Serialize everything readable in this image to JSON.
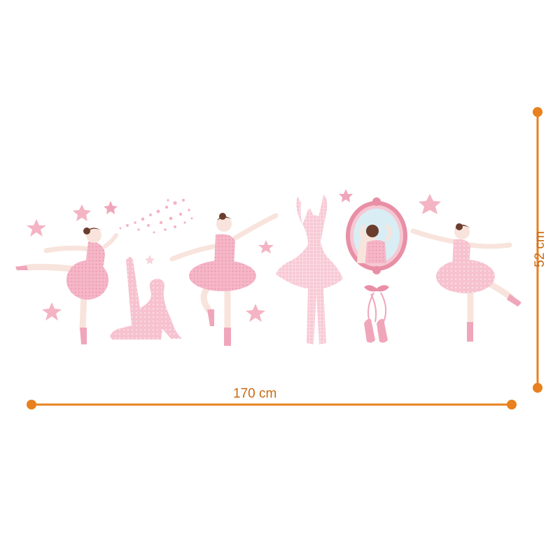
{
  "product": {
    "description_hidden": ""
  },
  "dimensions": {
    "width_label": "170 cm",
    "height_label": "52 cm"
  },
  "colors": {
    "dimension_line": "#E8801E",
    "dimension_text": "#C86A14",
    "pink_light": "#F9D3DC",
    "pink_mid": "#F4B4C4",
    "pink_dark": "#E88FA6",
    "skin": "#F8E4DC",
    "hair": "#6B3D2E",
    "mirror_frame": "#E06C9A"
  },
  "decals": [
    {
      "name": "ballerina-arabesque"
    },
    {
      "name": "dancer-stretching-silhouette"
    },
    {
      "name": "ballerina-tutu-center"
    },
    {
      "name": "dancer-arms-up-silhouette"
    },
    {
      "name": "mirror-with-ballerina"
    },
    {
      "name": "pointe-shoes"
    },
    {
      "name": "ballerina-right"
    }
  ]
}
